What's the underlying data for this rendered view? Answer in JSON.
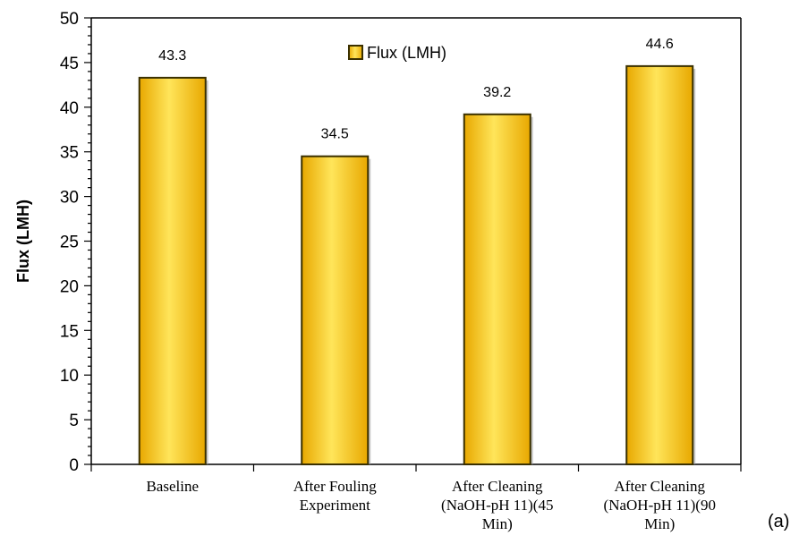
{
  "chart_data": {
    "type": "bar",
    "categories": [
      [
        "Baseline"
      ],
      [
        "After Fouling",
        "Experiment"
      ],
      [
        "After Cleaning",
        "(NaOH-pH 11)(45",
        "Min)"
      ],
      [
        "After Cleaning",
        "(NaOH-pH 11)(90",
        "Min)"
      ]
    ],
    "series": [
      {
        "name": "Flux (LMH)",
        "values": [
          43.3,
          34.5,
          39.2,
          44.6
        ],
        "data_labels": [
          "43.3",
          "34.5",
          "39.2",
          "44.6"
        ]
      }
    ],
    "xlabel": "",
    "ylabel": "Flux (LMH)",
    "ylim": [
      0,
      50
    ],
    "yticks": [
      0,
      5,
      10,
      15,
      20,
      25,
      30,
      35,
      40,
      45,
      50
    ],
    "grid": false,
    "legend_position": "top-center",
    "panel_label": "(a)",
    "colors": {
      "bar_fill_dark": "#e8a800",
      "bar_fill_light": "#ffe55a",
      "bar_edge": "#3a3000",
      "axis": "#000000"
    }
  }
}
